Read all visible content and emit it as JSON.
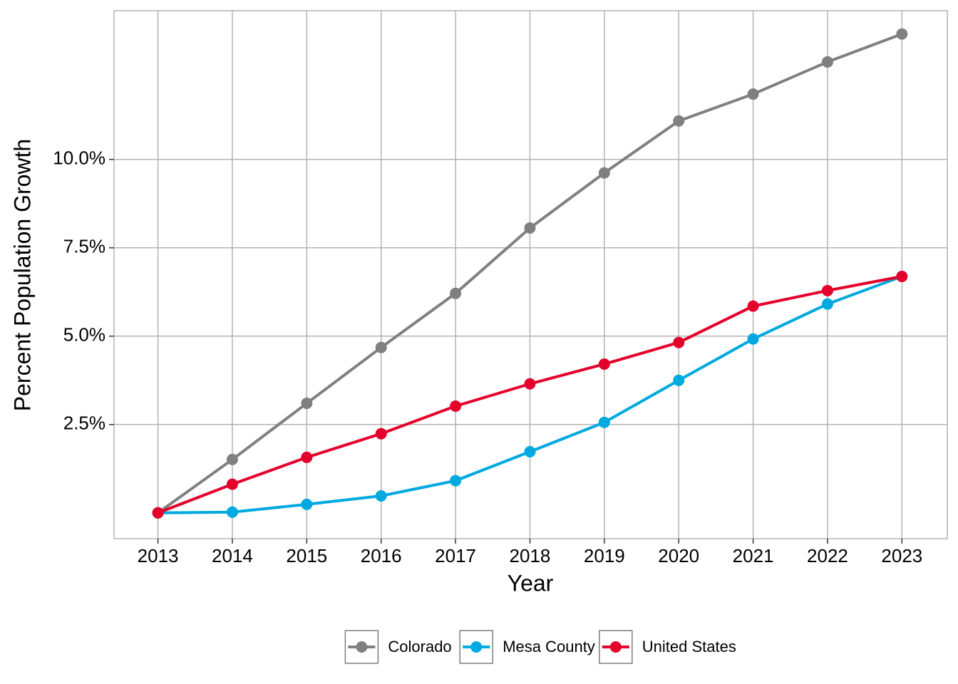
{
  "chart_data": {
    "type": "line",
    "x_label": "Year",
    "y_label": "Percent Population Growth",
    "x": [
      2013,
      2014,
      2015,
      2016,
      2017,
      2018,
      2019,
      2020,
      2021,
      2022,
      2023
    ],
    "series": [
      {
        "name": "Colorado",
        "color": "#808080",
        "values": [
          0,
          1.51,
          3.1,
          4.68,
          6.21,
          8.06,
          9.62,
          11.09,
          11.85,
          12.76,
          13.55
        ]
      },
      {
        "name": "Mesa County",
        "color": "#00a9e0",
        "values": [
          0,
          0.02,
          0.24,
          0.48,
          0.91,
          1.73,
          2.56,
          3.75,
          4.92,
          5.91,
          6.69
        ]
      },
      {
        "name": "United States",
        "color": "#e4002b",
        "values": [
          0,
          0.81,
          1.57,
          2.24,
          3.02,
          3.65,
          4.21,
          4.82,
          5.85,
          6.29,
          6.69
        ]
      }
    ],
    "xlim": [
      2012.41,
      2023.61
    ],
    "xticks": [
      2013,
      2014,
      2015,
      2016,
      2017,
      2018,
      2019,
      2020,
      2021,
      2022,
      2023
    ],
    "ylim": [
      -0.73,
      14.21
    ],
    "yticks": [
      {
        "value": 2.5,
        "label": "2.5%"
      },
      {
        "value": 5,
        "label": "5.0%"
      },
      {
        "value": 7.5,
        "label": "7.5%"
      },
      {
        "value": 10,
        "label": "10.0%"
      }
    ],
    "grid": true,
    "legend_position": "bottom"
  }
}
